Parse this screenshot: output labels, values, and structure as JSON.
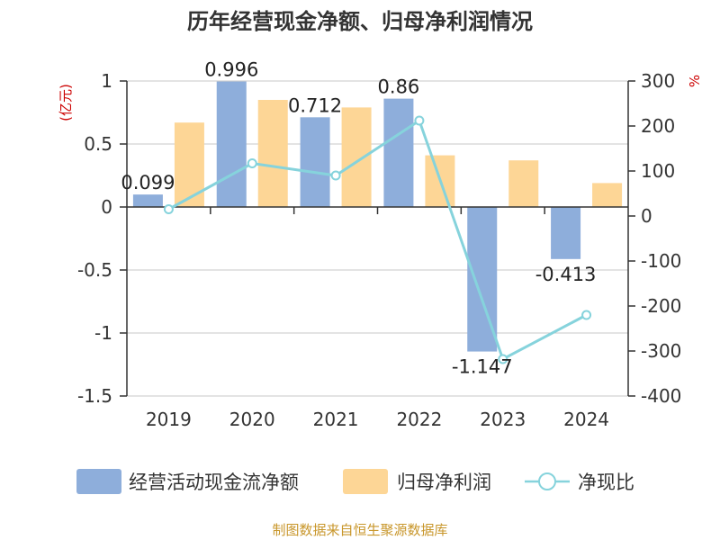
{
  "chart_data": {
    "type": "bar",
    "title": "历年经营现金净额、归母净利润情况",
    "categories": [
      "2019",
      "2020",
      "2021",
      "2022",
      "2023",
      "2024"
    ],
    "series": [
      {
        "name": "经营活动现金流净额",
        "type": "bar",
        "axis": "left",
        "color": "#8eaedb",
        "values": [
          0.099,
          0.996,
          0.712,
          0.86,
          -1.147,
          -0.413
        ],
        "labels": [
          "0.099",
          "0.996",
          "0.712",
          "0.86",
          "-1.147",
          "-0.413"
        ]
      },
      {
        "name": "归母净利润",
        "type": "bar",
        "axis": "left",
        "color": "#fdd696",
        "values": [
          0.67,
          0.85,
          0.79,
          0.41,
          0.37,
          0.19
        ]
      },
      {
        "name": "净现比",
        "type": "line",
        "axis": "right",
        "color": "#86d3dc",
        "values": [
          15,
          117,
          90,
          212,
          -318,
          -220
        ]
      }
    ],
    "left_axis": {
      "unit": "(亿元)",
      "ylim": [
        -1.5,
        1
      ],
      "ticks": [
        "1",
        "0.5",
        "0",
        "-0.5",
        "-1",
        "-1.5"
      ]
    },
    "right_axis": {
      "unit": "%",
      "ylim": [
        -400,
        300
      ],
      "ticks": [
        "300",
        "200",
        "100",
        "0",
        "-100",
        "-200",
        "-300",
        "-400"
      ]
    },
    "grid": true,
    "legend_position": "bottom"
  },
  "source": "制图数据来自恒生聚源数据库"
}
